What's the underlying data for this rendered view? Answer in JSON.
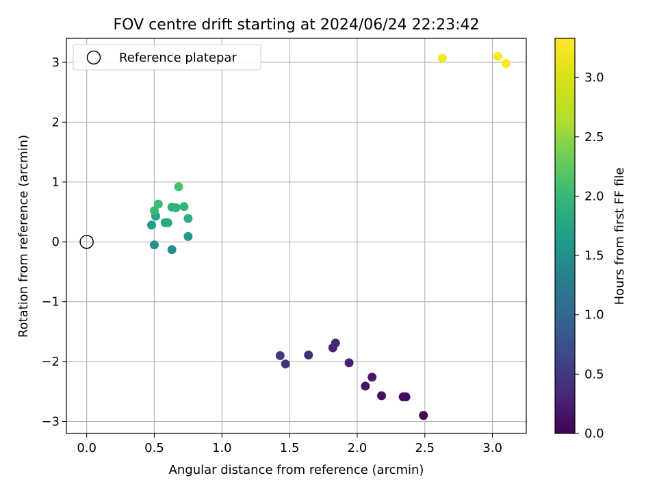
{
  "chart_data": {
    "type": "scatter",
    "title": "FOV centre drift starting at 2024/06/24 22:23:42",
    "xlabel": "Angular distance from reference (arcmin)",
    "ylabel": "Rotation from reference (arcmin)",
    "xlim": [
      -0.15,
      3.25
    ],
    "ylim": [
      -3.2,
      3.4
    ],
    "xticks": [
      0.0,
      0.5,
      1.0,
      1.5,
      2.0,
      2.5,
      3.0
    ],
    "xtick_labels": [
      "0.0",
      "0.5",
      "1.0",
      "1.5",
      "2.0",
      "2.5",
      "3.0"
    ],
    "yticks": [
      -3,
      -2,
      -1,
      0,
      1,
      2,
      3
    ],
    "ytick_labels": [
      "−3",
      "−2",
      "−1",
      "0",
      "1",
      "2",
      "3"
    ],
    "grid": true,
    "legend": {
      "position": "top-left",
      "entries": [
        "Reference platepar"
      ]
    },
    "reference": {
      "name": "Reference platepar",
      "x": 0.0,
      "y": 0.0
    },
    "colorbar": {
      "label": "Hours from first FF file",
      "colormap": "viridis",
      "range": [
        0.0,
        3.33
      ],
      "ticks": [
        0.0,
        0.5,
        1.0,
        1.5,
        2.0,
        2.5,
        3.0
      ],
      "tick_labels": [
        "0.0",
        "0.5",
        "1.0",
        "1.5",
        "2.0",
        "2.5",
        "3.0"
      ]
    },
    "points": [
      {
        "x": 2.49,
        "y": -2.9,
        "c": 0.0
      },
      {
        "x": 2.36,
        "y": -2.59,
        "c": 0.05
      },
      {
        "x": 2.34,
        "y": -2.59,
        "c": 0.08
      },
      {
        "x": 2.18,
        "y": -2.57,
        "c": 0.12
      },
      {
        "x": 2.06,
        "y": -2.41,
        "c": 0.15
      },
      {
        "x": 2.11,
        "y": -2.26,
        "c": 0.18
      },
      {
        "x": 1.94,
        "y": -2.02,
        "c": 0.24
      },
      {
        "x": 1.82,
        "y": -1.77,
        "c": 0.3
      },
      {
        "x": 1.84,
        "y": -1.69,
        "c": 0.33
      },
      {
        "x": 1.64,
        "y": -1.89,
        "c": 0.4
      },
      {
        "x": 1.47,
        "y": -2.04,
        "c": 0.45
      },
      {
        "x": 1.43,
        "y": -1.9,
        "c": 0.5
      },
      {
        "x": 0.63,
        "y": -0.13,
        "c": 1.48
      },
      {
        "x": 0.5,
        "y": -0.05,
        "c": 1.52
      },
      {
        "x": 0.75,
        "y": 0.09,
        "c": 1.58
      },
      {
        "x": 0.48,
        "y": 0.28,
        "c": 1.66
      },
      {
        "x": 0.51,
        "y": 0.43,
        "c": 1.72
      },
      {
        "x": 0.58,
        "y": 0.32,
        "c": 1.78
      },
      {
        "x": 0.6,
        "y": 0.32,
        "c": 1.82
      },
      {
        "x": 0.75,
        "y": 0.39,
        "c": 1.86
      },
      {
        "x": 0.63,
        "y": 0.58,
        "c": 1.92
      },
      {
        "x": 0.66,
        "y": 0.57,
        "c": 1.95
      },
      {
        "x": 0.72,
        "y": 0.59,
        "c": 1.98
      },
      {
        "x": 0.5,
        "y": 0.52,
        "c": 2.02
      },
      {
        "x": 0.53,
        "y": 0.63,
        "c": 2.06
      },
      {
        "x": 0.68,
        "y": 0.92,
        "c": 2.1
      },
      {
        "x": 2.63,
        "y": 3.07,
        "c": 3.28
      },
      {
        "x": 3.04,
        "y": 3.1,
        "c": 3.31
      },
      {
        "x": 3.1,
        "y": 2.98,
        "c": 3.33
      }
    ]
  }
}
